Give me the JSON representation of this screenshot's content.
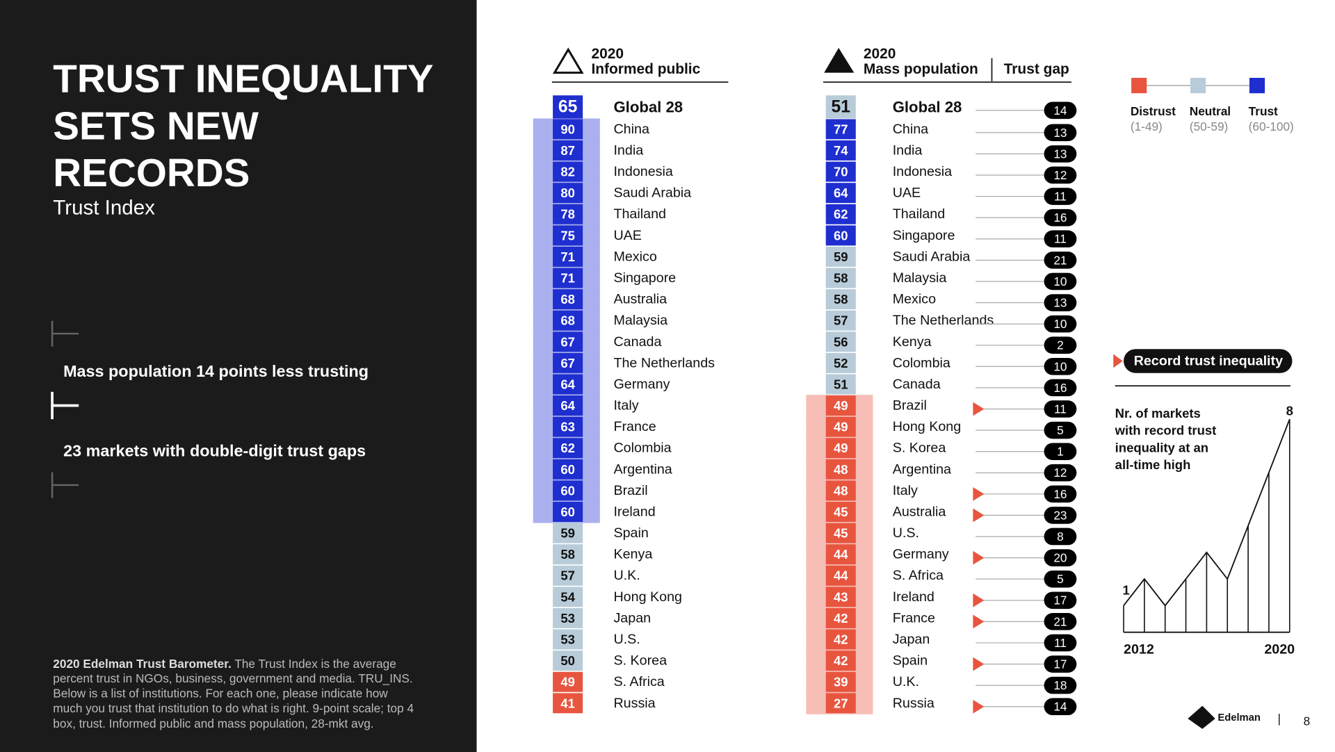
{
  "title_lines": [
    "TRUST INEQUALITY",
    "SETS NEW",
    "RECORDS"
  ],
  "subtitle": "Trust Index",
  "callouts": [
    "Mass population 14 points less trusting",
    "23 markets with double-digit trust gaps"
  ],
  "footnote": {
    "lead": "2020 Edelman Trust Barometer.",
    "lines": [
      " The Trust Index is the average",
      "percent trust in NGOs, business, government and media. TRU_INS.",
      "Below is a list of institutions. For each one, please indicate how",
      "much you trust that institution to do what is right. 9-point scale; top 4",
      "box, trust. Informed public and mass population, 28-mkt avg."
    ]
  },
  "legend": [
    {
      "label": "Distrust",
      "range": "(1-49)",
      "min": 1,
      "max": 49,
      "color": "#e8553f"
    },
    {
      "label": "Neutral",
      "range": "(50-59)",
      "min": 50,
      "max": 59,
      "color": "#b8cbd8"
    },
    {
      "label": "Trust",
      "range": "(60-100)",
      "min": 60,
      "max": 100,
      "color": "#1f2ecf"
    }
  ],
  "informed": {
    "year": "2020",
    "label": "Informed public",
    "rows": [
      {
        "value": 65,
        "country": "Global 28"
      },
      {
        "value": 90,
        "country": "China"
      },
      {
        "value": 87,
        "country": "India"
      },
      {
        "value": 82,
        "country": "Indonesia"
      },
      {
        "value": 80,
        "country": "Saudi Arabia"
      },
      {
        "value": 78,
        "country": "Thailand"
      },
      {
        "value": 75,
        "country": "UAE"
      },
      {
        "value": 71,
        "country": "Mexico"
      },
      {
        "value": 71,
        "country": "Singapore"
      },
      {
        "value": 68,
        "country": "Australia"
      },
      {
        "value": 68,
        "country": "Malaysia"
      },
      {
        "value": 67,
        "country": "Canada"
      },
      {
        "value": 67,
        "country": "The Netherlands"
      },
      {
        "value": 64,
        "country": "Germany"
      },
      {
        "value": 64,
        "country": "Italy"
      },
      {
        "value": 63,
        "country": "France"
      },
      {
        "value": 62,
        "country": "Colombia"
      },
      {
        "value": 60,
        "country": "Argentina"
      },
      {
        "value": 60,
        "country": "Brazil"
      },
      {
        "value": 60,
        "country": "Ireland"
      },
      {
        "value": 59,
        "country": "Spain"
      },
      {
        "value": 58,
        "country": "Kenya"
      },
      {
        "value": 57,
        "country": "U.K."
      },
      {
        "value": 54,
        "country": "Hong Kong"
      },
      {
        "value": 53,
        "country": "Japan"
      },
      {
        "value": 53,
        "country": "U.S."
      },
      {
        "value": 50,
        "country": "S. Korea"
      },
      {
        "value": 49,
        "country": "S. Africa"
      },
      {
        "value": 41,
        "country": "Russia"
      }
    ]
  },
  "mass": {
    "year": "2020",
    "label": "Mass population",
    "gap_header": "Trust gap",
    "rows": [
      {
        "value": 51,
        "country": "Global 28",
        "gap": 14,
        "record": false
      },
      {
        "value": 77,
        "country": "China",
        "gap": 13,
        "record": false
      },
      {
        "value": 74,
        "country": "India",
        "gap": 13,
        "record": false
      },
      {
        "value": 70,
        "country": "Indonesia",
        "gap": 12,
        "record": false
      },
      {
        "value": 64,
        "country": "UAE",
        "gap": 11,
        "record": false
      },
      {
        "value": 62,
        "country": "Thailand",
        "gap": 16,
        "record": false
      },
      {
        "value": 60,
        "country": "Singapore",
        "gap": 11,
        "record": false
      },
      {
        "value": 59,
        "country": "Saudi Arabia",
        "gap": 21,
        "record": false
      },
      {
        "value": 58,
        "country": "Malaysia",
        "gap": 10,
        "record": false
      },
      {
        "value": 58,
        "country": "Mexico",
        "gap": 13,
        "record": false
      },
      {
        "value": 57,
        "country": "The Netherlands",
        "gap": 10,
        "record": false
      },
      {
        "value": 56,
        "country": "Kenya",
        "gap": 2,
        "record": false
      },
      {
        "value": 52,
        "country": "Colombia",
        "gap": 10,
        "record": false
      },
      {
        "value": 51,
        "country": "Canada",
        "gap": 16,
        "record": false
      },
      {
        "value": 49,
        "country": "Brazil",
        "gap": 11,
        "record": true
      },
      {
        "value": 49,
        "country": "Hong Kong",
        "gap": 5,
        "record": false
      },
      {
        "value": 49,
        "country": "S. Korea",
        "gap": 1,
        "record": false
      },
      {
        "value": 48,
        "country": "Argentina",
        "gap": 12,
        "record": false
      },
      {
        "value": 48,
        "country": "Italy",
        "gap": 16,
        "record": true
      },
      {
        "value": 45,
        "country": "Australia",
        "gap": 23,
        "record": true
      },
      {
        "value": 45,
        "country": "U.S.",
        "gap": 8,
        "record": false
      },
      {
        "value": 44,
        "country": "Germany",
        "gap": 20,
        "record": true
      },
      {
        "value": 44,
        "country": "S. Africa",
        "gap": 5,
        "record": false
      },
      {
        "value": 43,
        "country": "Ireland",
        "gap": 17,
        "record": true
      },
      {
        "value": 42,
        "country": "France",
        "gap": 21,
        "record": true
      },
      {
        "value": 42,
        "country": "Japan",
        "gap": 11,
        "record": false
      },
      {
        "value": 42,
        "country": "Spain",
        "gap": 17,
        "record": true
      },
      {
        "value": 39,
        "country": "U.K.",
        "gap": 18,
        "record": false
      },
      {
        "value": 27,
        "country": "Russia",
        "gap": 14,
        "record": true
      }
    ]
  },
  "record_label": "Record trust inequality",
  "sparkline": {
    "title_lines": [
      "Nr. of markets",
      "with record trust",
      "inequality at an",
      "all-time high"
    ],
    "x": [
      "2012",
      null,
      null,
      null,
      null,
      null,
      null,
      null,
      "2020"
    ],
    "values": [
      1,
      2,
      1,
      2,
      3,
      2,
      4,
      6,
      8
    ]
  },
  "brand": "Edelman",
  "page": "8"
}
